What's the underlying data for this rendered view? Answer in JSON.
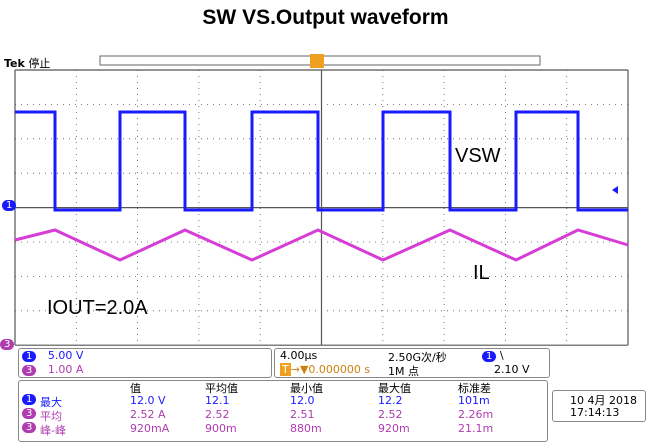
{
  "title": "SW VS.Output waveform",
  "status": {
    "brand": "Tek",
    "state": "停止"
  },
  "labels": {
    "vsw": "VSW",
    "il": "IL",
    "iout": "IOUT=2.0A"
  },
  "channels": [
    {
      "num": "1",
      "scale": "5.00 V"
    },
    {
      "num": "3",
      "scale": "1.00 A"
    }
  ],
  "timebase": {
    "scale": "4.00μs",
    "position": "0.000000 s"
  },
  "acquisition": {
    "rate": "2.50G次/秒",
    "points": "1M 点"
  },
  "trigger": {
    "channel": "1",
    "slope": "\\",
    "level": "2.10 V"
  },
  "measurements": {
    "header": [
      "值",
      "平均值",
      "最小值",
      "最大值",
      "标准差"
    ],
    "rows": [
      [
        "1",
        "最大",
        "12.0 V",
        "12.1",
        "12.0",
        "12.2",
        "101m"
      ],
      [
        "3",
        "平均",
        "2.52 A",
        "2.52",
        "2.51",
        "2.52",
        "2.26m"
      ],
      [
        "3",
        "峰-峰",
        "920mA",
        "900m",
        "880m",
        "920m",
        "21.1m"
      ]
    ]
  },
  "datetime": {
    "date": "10 4月 2018",
    "time": "17:14:13"
  }
}
